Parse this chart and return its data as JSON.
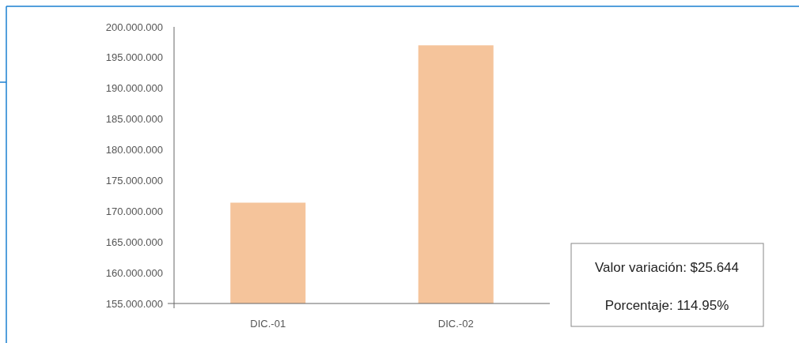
{
  "chart_data": {
    "type": "bar",
    "categories": [
      "DIC.-01",
      "DIC.-02"
    ],
    "values": [
      171400000,
      197000000
    ],
    "color": "#f5c49b",
    "ylim": [
      155000000,
      200000000
    ],
    "yticks": [
      {
        "value": 155000000,
        "label": "155.000.000"
      },
      {
        "value": 160000000,
        "label": "160.000.000"
      },
      {
        "value": 165000000,
        "label": "165.000.000"
      },
      {
        "value": 170000000,
        "label": "170.000.000"
      },
      {
        "value": 175000000,
        "label": "175.000.000"
      },
      {
        "value": 180000000,
        "label": "180.000.000"
      },
      {
        "value": 185000000,
        "label": "185.000.000"
      },
      {
        "value": 190000000,
        "label": "190.000.000"
      },
      {
        "value": 195000000,
        "label": "195.000.000"
      },
      {
        "value": 200000000,
        "label": "200.000.000"
      }
    ],
    "annotations": [
      "Valor variación: $25.644",
      "Porcentaje: 114.95%"
    ],
    "grid": false
  }
}
